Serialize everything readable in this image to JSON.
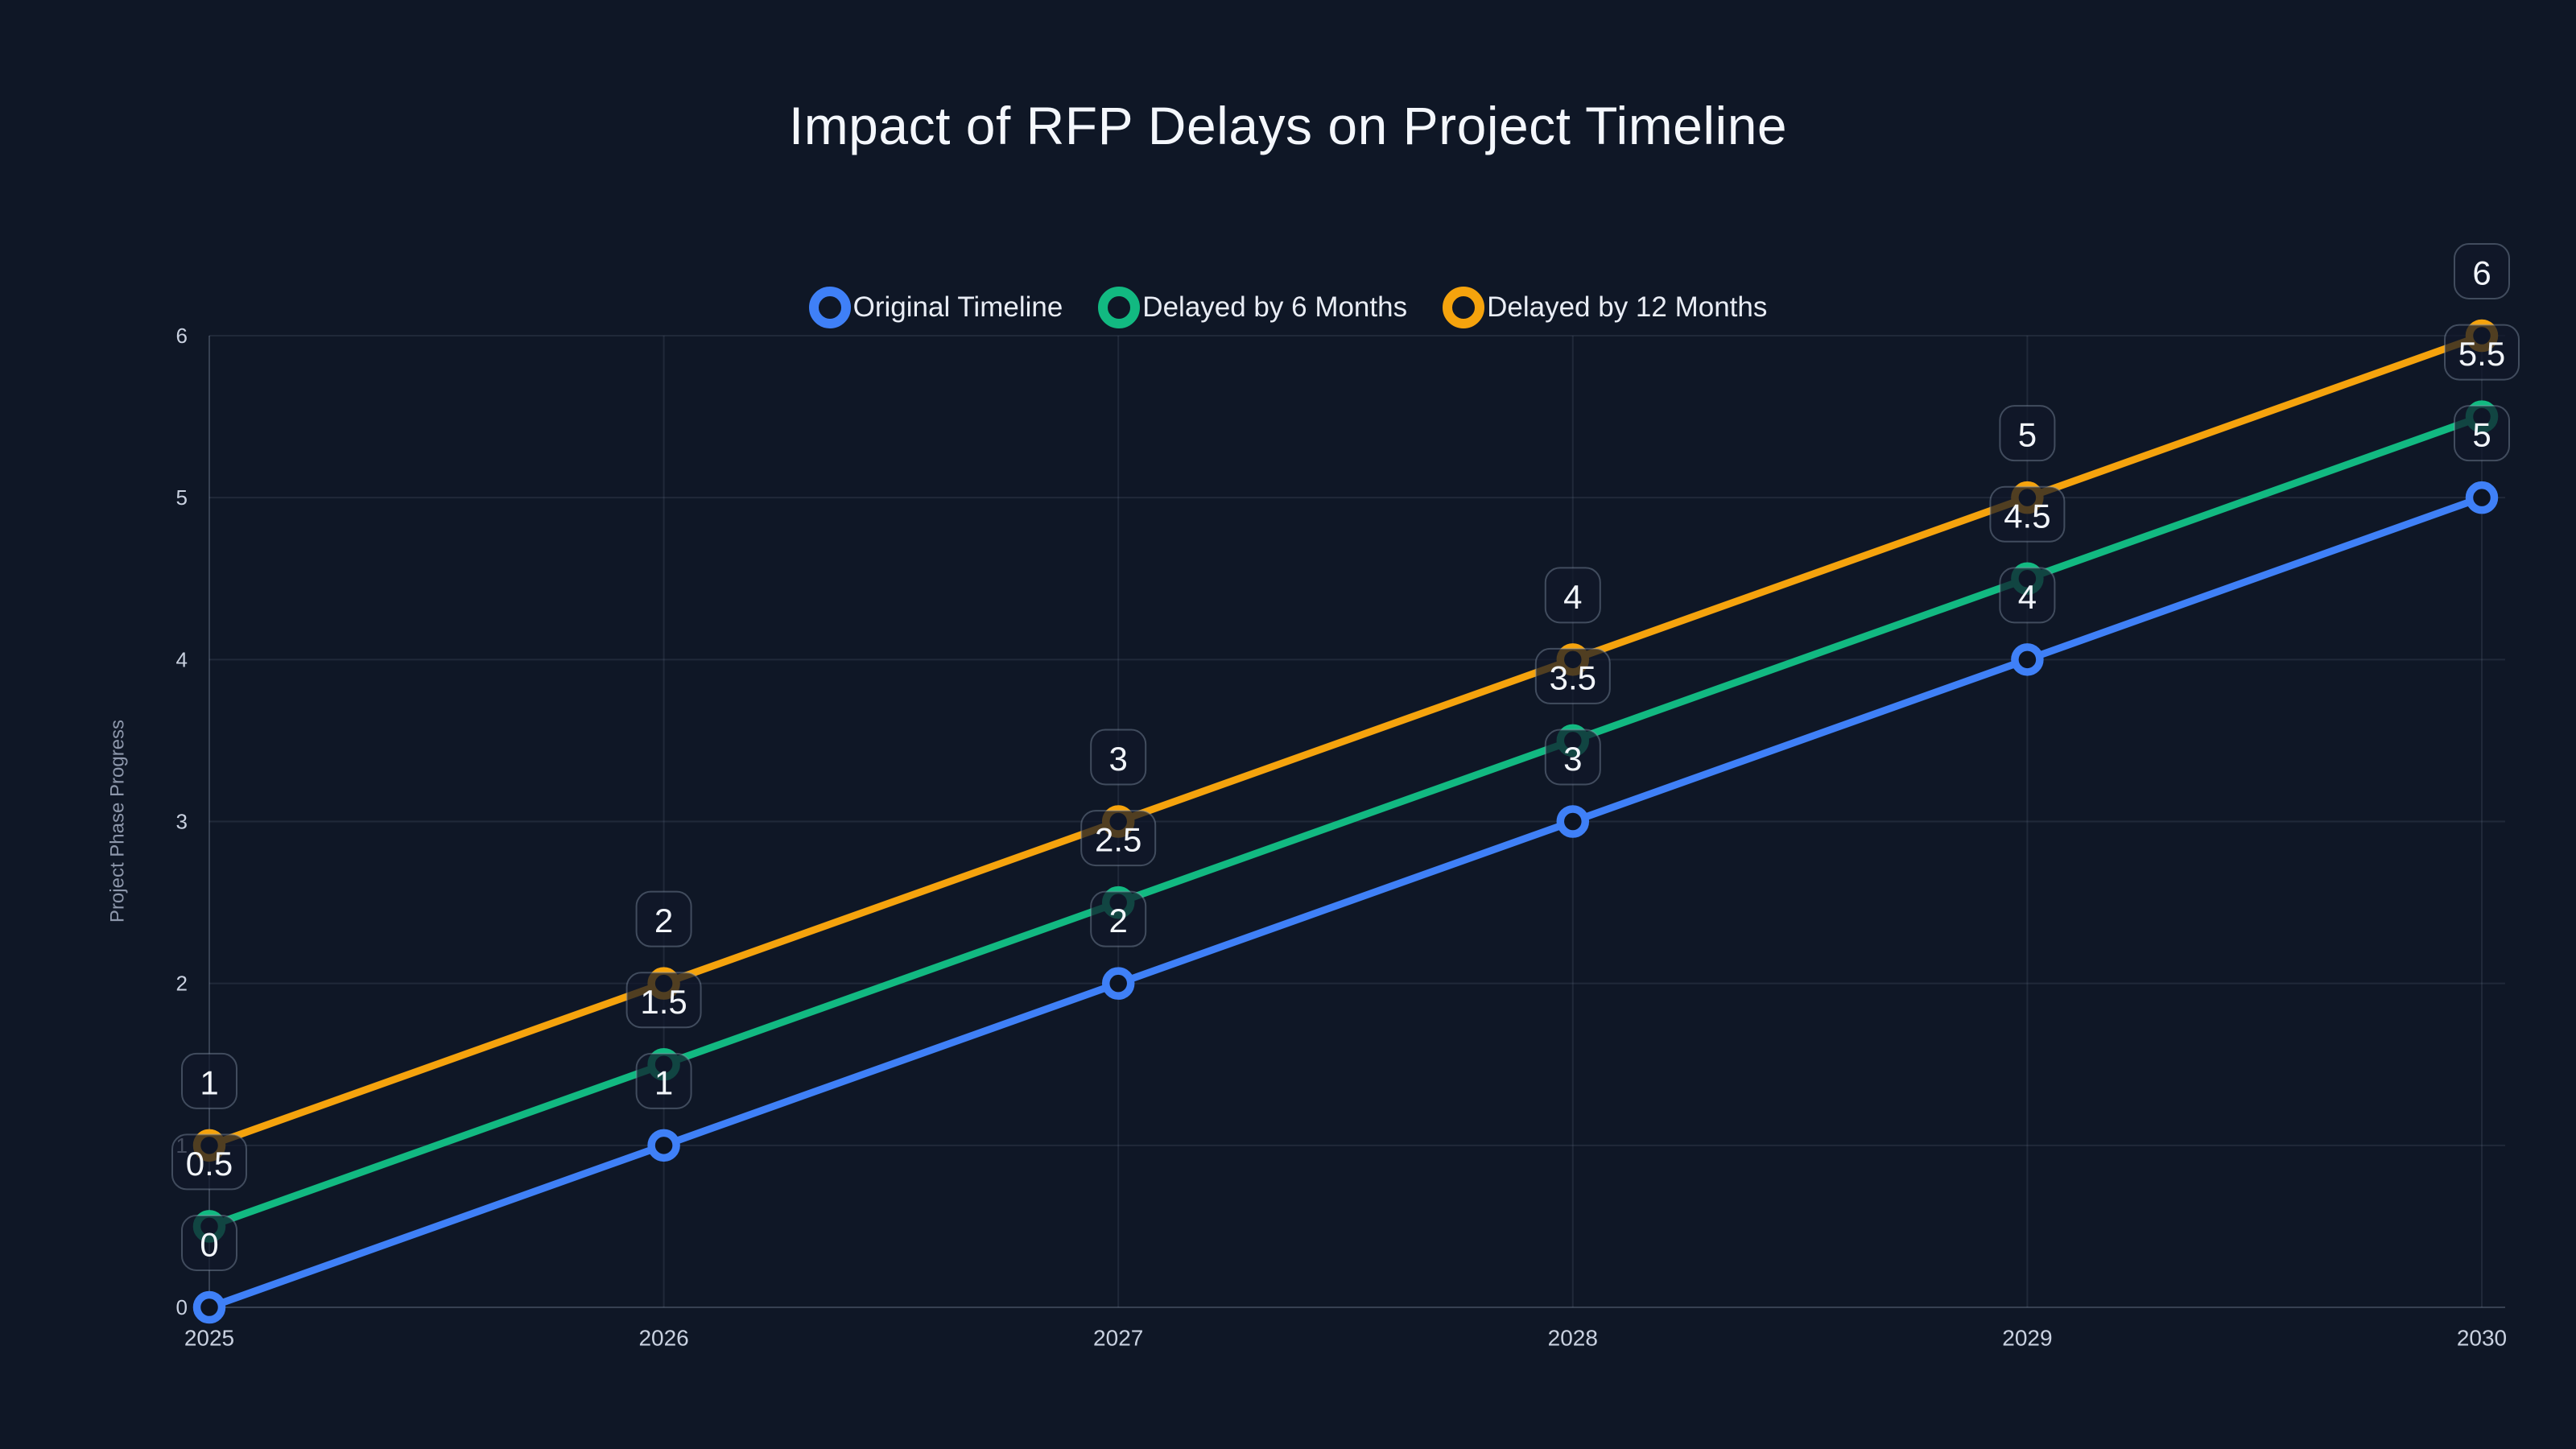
{
  "title": "Impact of RFP Delays on Project Timeline",
  "chart_data": {
    "type": "line",
    "x": [
      2025,
      2026,
      2027,
      2028,
      2029,
      2030
    ],
    "xlabel": "",
    "ylabel": "Project Phase Progress",
    "ylim": [
      0,
      6
    ],
    "yticks": [
      0,
      1,
      2,
      3,
      4,
      5,
      6
    ],
    "grid": true,
    "legend_position": "top-center",
    "point_labels_visible": true,
    "series": [
      {
        "name": "Original Timeline",
        "color": "#3f80f7",
        "values": [
          0,
          1,
          2,
          3,
          4,
          5
        ],
        "labels": [
          "0",
          "1",
          "2",
          "3",
          "4",
          "5"
        ]
      },
      {
        "name": "Delayed by 6 Months",
        "color": "#12b981",
        "values": [
          0.5,
          1.5,
          2.5,
          3.5,
          4.5,
          5.5
        ],
        "labels": [
          "0.5",
          "1.5",
          "2.5",
          "3.5",
          "4.5",
          "5.5"
        ]
      },
      {
        "name": "Delayed by 12 Months",
        "color": "#f5a30d",
        "values": [
          1,
          2,
          3,
          4,
          5,
          6
        ],
        "labels": [
          "1",
          "2",
          "3",
          "4",
          "5",
          "6"
        ]
      }
    ]
  },
  "colors": {
    "background": "#0f1726",
    "title_text": "#f4f7fc",
    "legend_text": "#e9edf5",
    "grid_line": "rgba(148,163,184,0.13)",
    "axis_line": "rgba(148,163,184,0.30)",
    "tick_text": "#c9d1e0",
    "axis_title_text": "#8d97ab",
    "label_box_fill": "rgba(17,24,41,0.72)",
    "label_box_border": "rgba(148,163,184,0.38)",
    "label_text": "#f2f5fa",
    "marker_hole_fill": "#0d1422"
  },
  "icons": {
    "legend_marker": "ring-icon"
  }
}
